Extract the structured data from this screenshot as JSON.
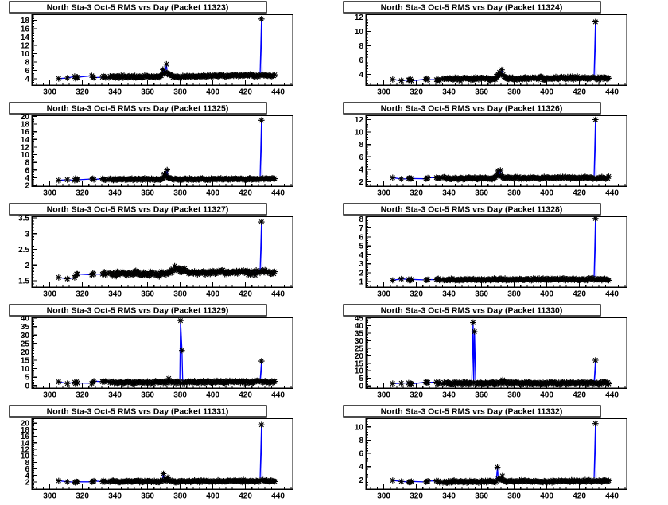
{
  "style": {
    "background": "#ffffff",
    "line_color": "#0000ff",
    "marker_color": "#000000",
    "frame_color": "#000000",
    "title_box_bg": "#ffffff",
    "title_box_border": "#000000",
    "marker_glyph": "asterisk"
  },
  "axes": {
    "xlim": [
      289,
      449
    ],
    "x_ticks": [
      300,
      320,
      340,
      360,
      380,
      400,
      420,
      440
    ],
    "x_minor_divisions": 5,
    "y_minor_divisions": 5
  },
  "sampling": {
    "sparse_x": [
      305.5,
      310.8,
      315.3,
      315.8,
      316.4,
      317.0,
      325.8,
      326.4,
      327.1,
      332.3,
      332.9,
      333.5,
      334.2,
      336.3,
      337.0
    ],
    "dense_start": 338.4,
    "dense_end": 438.2,
    "dense_step": 0.6
  },
  "chart_data": [
    {
      "type": "line",
      "packet": 11323,
      "title": "North Sta-3 Oct-5 RMS vrs Day (Packet 11323)",
      "xlabel": "",
      "ylabel": "",
      "ylim": [
        2.5,
        19.4
      ],
      "y_ticks": [
        4,
        6,
        8,
        10,
        12,
        14,
        16,
        18
      ],
      "baseline": [
        [
          305,
          4.3
        ],
        [
          336,
          4.45
        ],
        [
          365,
          4.5
        ],
        [
          378,
          4.55
        ],
        [
          395,
          4.7
        ],
        [
          420,
          4.8
        ],
        [
          438,
          4.8
        ]
      ],
      "noise": 0.22,
      "bump": {
        "center": 371,
        "sigma": 2.6,
        "amp": 0.95
      },
      "anomalies": [
        [
          369.4,
          6.25
        ],
        [
          371.6,
          7.5
        ],
        [
          429.9,
          18.3
        ]
      ]
    },
    {
      "type": "line",
      "packet": 11324,
      "title": "North Sta-3 Oct-5 RMS vrs Day (Packet 11324)",
      "xlabel": "",
      "ylabel": "",
      "ylim": [
        2.5,
        12.4
      ],
      "y_ticks": [
        4,
        6,
        8,
        10,
        12
      ],
      "baseline": [
        [
          305,
          3.25
        ],
        [
          336,
          3.35
        ],
        [
          370,
          3.4
        ],
        [
          400,
          3.5
        ],
        [
          438,
          3.5
        ]
      ],
      "noise": 0.16,
      "bump": {
        "center": 372,
        "sigma": 2.4,
        "amp": 0.7
      },
      "anomalies": [
        [
          371.0,
          4.3
        ],
        [
          372.4,
          4.65
        ],
        [
          429.9,
          11.35
        ]
      ]
    },
    {
      "type": "line",
      "packet": 11325,
      "title": "North Sta-3 Oct-5 RMS vrs Day (Packet 11325)",
      "xlabel": "",
      "ylabel": "",
      "ylim": [
        1.8,
        20.3
      ],
      "y_ticks": [
        2,
        4,
        6,
        8,
        10,
        12,
        14,
        16,
        18,
        20
      ],
      "baseline": [
        [
          305,
          3.55
        ],
        [
          340,
          3.6
        ],
        [
          438,
          3.7
        ]
      ],
      "noise": 0.18,
      "bump": {
        "center": 371.5,
        "sigma": 2.0,
        "amp": 0.8
      },
      "anomalies": [
        [
          370.2,
          4.95
        ],
        [
          372.0,
          6.05
        ],
        [
          429.9,
          19.0
        ]
      ]
    },
    {
      "type": "line",
      "packet": 11326,
      "title": "North Sta-3 Oct-5 RMS vrs Day (Packet 11326)",
      "xlabel": "",
      "ylabel": "",
      "ylim": [
        1.3,
        12.7
      ],
      "y_ticks": [
        2,
        4,
        6,
        8,
        10,
        12
      ],
      "baseline": [
        [
          305,
          2.5
        ],
        [
          340,
          2.55
        ],
        [
          438,
          2.65
        ]
      ],
      "noise": 0.14,
      "bump": {
        "center": 371,
        "sigma": 1.9,
        "amp": 0.55
      },
      "anomalies": [
        [
          370.0,
          3.75
        ],
        [
          371.6,
          3.85
        ],
        [
          429.9,
          12.0
        ]
      ]
    },
    {
      "type": "line",
      "packet": 11327,
      "title": "North Sta-3 Oct-5 RMS vrs Day (Packet 11327)",
      "xlabel": "",
      "ylabel": "",
      "ylim": [
        1.3,
        3.55
      ],
      "y_ticks": [
        1.5,
        2,
        2.5,
        3,
        3.5
      ],
      "baseline": [
        [
          305,
          1.57
        ],
        [
          310,
          1.53
        ],
        [
          315,
          1.66
        ],
        [
          326,
          1.67
        ],
        [
          332,
          1.75
        ],
        [
          341,
          1.71
        ],
        [
          352,
          1.76
        ],
        [
          361,
          1.71
        ],
        [
          367,
          1.69
        ],
        [
          375,
          1.83
        ],
        [
          381,
          1.84
        ],
        [
          389,
          1.74
        ],
        [
          400,
          1.78
        ],
        [
          413,
          1.8
        ],
        [
          424,
          1.76
        ],
        [
          438,
          1.8
        ]
      ],
      "noise": 0.055,
      "bump": null,
      "anomalies": [
        [
          376.6,
          1.97
        ],
        [
          429.9,
          3.37
        ]
      ]
    },
    {
      "type": "line",
      "packet": 11328,
      "title": "North Sta-3 Oct-5 RMS vrs Day (Packet 11328)",
      "xlabel": "",
      "ylabel": "",
      "ylim": [
        0.4,
        8.3
      ],
      "y_ticks": [
        1,
        2,
        3,
        4,
        5,
        6,
        7,
        8
      ],
      "baseline": [
        [
          305,
          1.2
        ],
        [
          340,
          1.24
        ],
        [
          438,
          1.28
        ]
      ],
      "noise": 0.08,
      "bump": null,
      "anomalies": [
        [
          429.9,
          8.05
        ]
      ]
    },
    {
      "type": "line",
      "packet": 11329,
      "title": "North Sta-3 Oct-5 RMS vrs Day (Packet 11329)",
      "xlabel": "",
      "ylabel": "",
      "ylim": [
        -1.5,
        40.5
      ],
      "y_ticks": [
        0,
        5,
        10,
        15,
        20,
        25,
        30,
        35,
        40
      ],
      "baseline": [
        [
          305,
          1.7
        ],
        [
          340,
          1.95
        ],
        [
          438,
          2.2
        ]
      ],
      "noise": 0.55,
      "bump": {
        "center": 373,
        "sigma": 1.5,
        "amp": 0.8
      },
      "anomalies": [
        [
          373.0,
          4.2
        ],
        [
          380.2,
          38.5
        ],
        [
          381.1,
          20.8
        ],
        [
          429.9,
          14.5
        ]
      ]
    },
    {
      "type": "line",
      "packet": 11330,
      "title": "North Sta-3 Oct-5 RMS vrs Day (Packet 11330)",
      "xlabel": "",
      "ylabel": "",
      "ylim": [
        -1.5,
        45.5
      ],
      "y_ticks": [
        0,
        5,
        10,
        15,
        20,
        25,
        30,
        35,
        40,
        45
      ],
      "baseline": [
        [
          305,
          1.6
        ],
        [
          340,
          1.85
        ],
        [
          438,
          2.05
        ]
      ],
      "noise": 0.55,
      "bump": {
        "center": 373,
        "sigma": 1.5,
        "amp": 0.8
      },
      "anomalies": [
        [
          354.8,
          42.0
        ],
        [
          355.7,
          36.0
        ],
        [
          373.0,
          4.0
        ],
        [
          429.9,
          17.0
        ]
      ]
    },
    {
      "type": "line",
      "packet": 11331,
      "title": "North Sta-3 Oct-5 RMS vrs Day (Packet 11331)",
      "xlabel": "",
      "ylabel": "",
      "ylim": [
        -0.2,
        21.5
      ],
      "y_ticks": [
        2,
        4,
        6,
        8,
        10,
        12,
        14,
        16,
        18,
        20
      ],
      "baseline": [
        [
          305,
          2.05
        ],
        [
          340,
          2.15
        ],
        [
          438,
          2.3
        ]
      ],
      "noise": 0.25,
      "bump": {
        "center": 371,
        "sigma": 2.0,
        "amp": 0.45
      },
      "anomalies": [
        [
          369.8,
          4.55
        ],
        [
          372.4,
          3.35
        ],
        [
          429.9,
          19.5
        ]
      ]
    },
    {
      "type": "line",
      "packet": 11332,
      "title": "North Sta-3 Oct-5 RMS vrs Day (Packet 11332)",
      "xlabel": "",
      "ylabel": "",
      "ylim": [
        0.6,
        11.3
      ],
      "y_ticks": [
        2,
        4,
        6,
        8,
        10
      ],
      "baseline": [
        [
          305,
          1.7
        ],
        [
          340,
          1.73
        ],
        [
          438,
          1.82
        ]
      ],
      "noise": 0.13,
      "bump": {
        "center": 371,
        "sigma": 1.8,
        "amp": 0.35
      },
      "anomalies": [
        [
          369.8,
          3.9
        ],
        [
          372.8,
          2.6
        ],
        [
          429.9,
          10.5
        ]
      ]
    }
  ]
}
